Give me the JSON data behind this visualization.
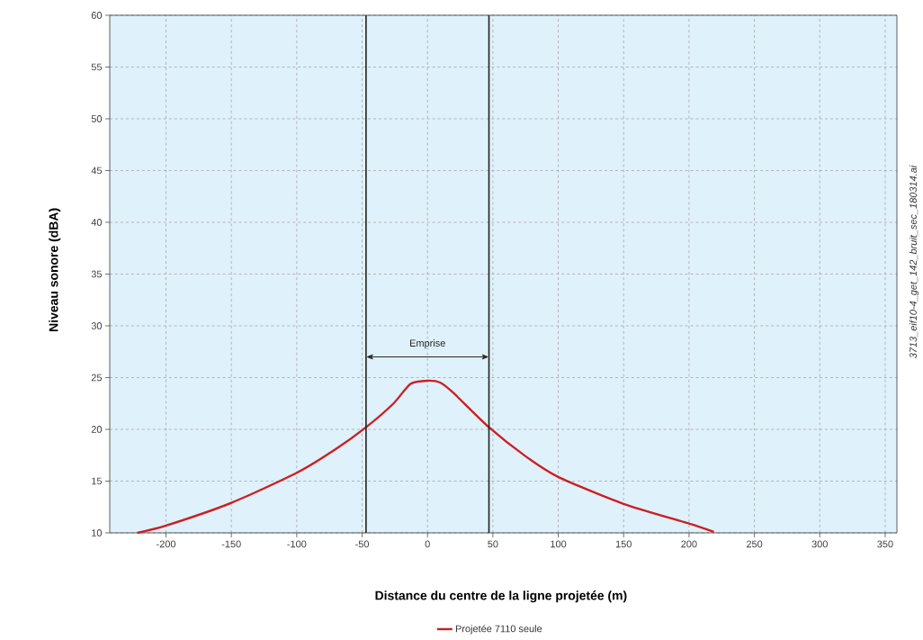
{
  "chart_data": {
    "type": "line",
    "xlabel": "Distance du centre de la ligne projetée (m)",
    "ylabel": "Niveau sonore (dBA)",
    "xlim": [
      -243,
      359
    ],
    "xticks": [
      -200,
      -150,
      -100,
      -50,
      0,
      50,
      100,
      150,
      200,
      250,
      300,
      350
    ],
    "ylim": [
      10,
      60
    ],
    "yticks": [
      10,
      15,
      20,
      25,
      30,
      35,
      40,
      45,
      50,
      55,
      60
    ],
    "grid": true,
    "legend": "bottom",
    "marker": "none",
    "line_style": "solid",
    "series": [
      {
        "name": "Projetée 7110 seule",
        "color": "#cc1f24",
        "x": [
          -222,
          -200,
          -150,
          -100,
          -70,
          -47,
          -26,
          -13,
          0,
          10,
          20,
          47,
          75,
          100,
          150,
          200,
          219
        ],
        "values": [
          10,
          10.7,
          12.9,
          15.8,
          18.1,
          20.2,
          22.5,
          24.4,
          24.7,
          24.5,
          23.5,
          20.2,
          17.4,
          15.4,
          12.8,
          10.9,
          10.1
        ]
      }
    ],
    "ref_lines": [
      {
        "axis": "x",
        "value": -47,
        "color": "#222222"
      },
      {
        "axis": "x",
        "value": 47,
        "color": "#222222"
      }
    ],
    "annotations": [
      "3713_eif10-4_get_142_bruit_sec_180314.ai",
      "Emprise"
    ]
  }
}
